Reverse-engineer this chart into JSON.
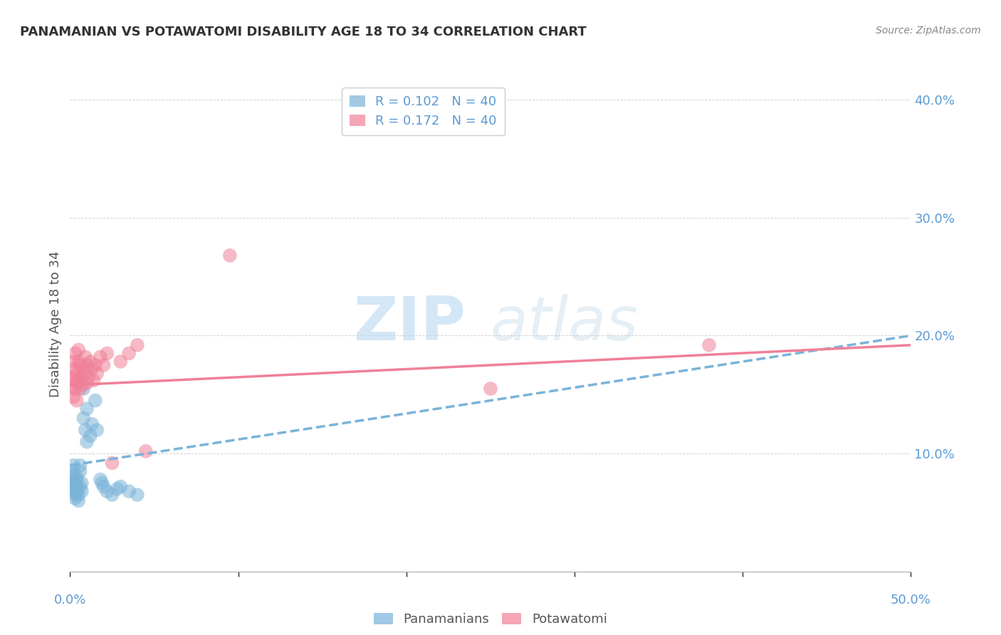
{
  "title": "PANAMANIAN VS POTAWATOMI DISABILITY AGE 18 TO 34 CORRELATION CHART",
  "source": "Source: ZipAtlas.com",
  "ylabel": "Disability Age 18 to 34",
  "xlim": [
    0.0,
    0.5
  ],
  "ylim": [
    0.0,
    0.42
  ],
  "panamanian_color": "#7ab3d8",
  "potawatomi_color": "#f08098",
  "panamanian_x": [
    0.001,
    0.001,
    0.001,
    0.002,
    0.002,
    0.002,
    0.002,
    0.003,
    0.003,
    0.003,
    0.003,
    0.004,
    0.004,
    0.004,
    0.004,
    0.005,
    0.005,
    0.006,
    0.006,
    0.006,
    0.007,
    0.007,
    0.008,
    0.008,
    0.009,
    0.01,
    0.01,
    0.012,
    0.013,
    0.015,
    0.016,
    0.018,
    0.019,
    0.02,
    0.022,
    0.025,
    0.028,
    0.03,
    0.035,
    0.04
  ],
  "panamanian_y": [
    0.085,
    0.078,
    0.072,
    0.068,
    0.075,
    0.082,
    0.09,
    0.065,
    0.07,
    0.075,
    0.062,
    0.068,
    0.072,
    0.078,
    0.08,
    0.06,
    0.065,
    0.072,
    0.085,
    0.09,
    0.068,
    0.075,
    0.13,
    0.155,
    0.12,
    0.11,
    0.138,
    0.115,
    0.125,
    0.145,
    0.12,
    0.078,
    0.075,
    0.072,
    0.068,
    0.065,
    0.07,
    0.072,
    0.068,
    0.065
  ],
  "potawatomi_x": [
    0.001,
    0.001,
    0.002,
    0.002,
    0.002,
    0.003,
    0.003,
    0.003,
    0.004,
    0.004,
    0.004,
    0.005,
    0.005,
    0.005,
    0.006,
    0.006,
    0.007,
    0.007,
    0.008,
    0.008,
    0.009,
    0.01,
    0.01,
    0.011,
    0.012,
    0.013,
    0.014,
    0.015,
    0.016,
    0.018,
    0.02,
    0.022,
    0.025,
    0.03,
    0.035,
    0.04,
    0.045,
    0.095,
    0.25,
    0.38
  ],
  "potawatomi_y": [
    0.165,
    0.155,
    0.178,
    0.162,
    0.148,
    0.155,
    0.172,
    0.185,
    0.16,
    0.168,
    0.145,
    0.178,
    0.162,
    0.188,
    0.155,
    0.175,
    0.165,
    0.158,
    0.172,
    0.168,
    0.182,
    0.175,
    0.16,
    0.165,
    0.178,
    0.172,
    0.162,
    0.175,
    0.168,
    0.182,
    0.175,
    0.185,
    0.092,
    0.178,
    0.185,
    0.192,
    0.102,
    0.268,
    0.155,
    0.192
  ],
  "pan_trend_x": [
    0.0,
    0.5
  ],
  "pan_trend_y": [
    0.09,
    0.2
  ],
  "pot_trend_x": [
    0.0,
    0.5
  ],
  "pot_trend_y": [
    0.158,
    0.192
  ]
}
